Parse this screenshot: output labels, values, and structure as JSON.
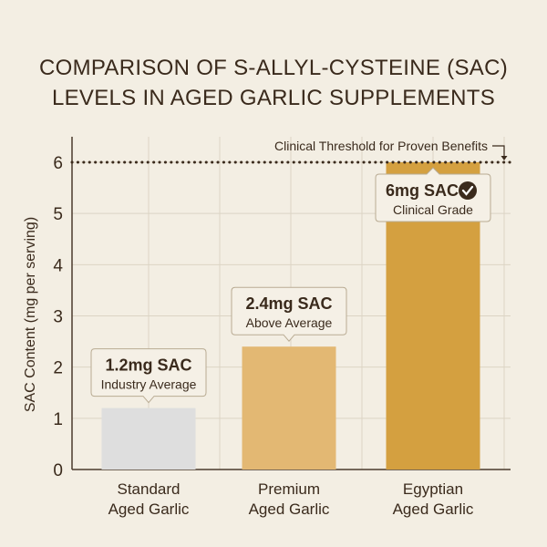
{
  "chart_data": {
    "type": "bar",
    "title_lines": [
      "COMPARISON OF S-ALLYL-CYSTEINE (SAC)",
      "LEVELS IN AGED GARLIC SUPPLEMENTS"
    ],
    "ylabel": "SAC Content (mg per serving)",
    "xlabel": "",
    "ylim": [
      0,
      6.5
    ],
    "yticks": [
      0,
      1,
      2,
      3,
      4,
      5,
      6
    ],
    "grid": true,
    "categories": [
      [
        "Standard",
        "Aged Garlic"
      ],
      [
        "Premium",
        "Aged Garlic"
      ],
      [
        "Egyptian",
        "Aged Garlic"
      ]
    ],
    "values": [
      1.2,
      2.4,
      6
    ],
    "colors": [
      "#dedede",
      "#e3b873",
      "#d4a040"
    ],
    "annotations": [
      {
        "title": "1.2mg SAC",
        "subtitle": "Industry Average",
        "check": false
      },
      {
        "title": "2.4mg SAC",
        "subtitle": "Above Average",
        "check": false
      },
      {
        "title": "6mg SAC",
        "subtitle": "Clinical Grade",
        "check": true,
        "icon": "check-circle-icon"
      }
    ],
    "threshold": {
      "value": 6,
      "label": "Clinical Threshold for Proven Benefits",
      "style": "dotted"
    }
  }
}
